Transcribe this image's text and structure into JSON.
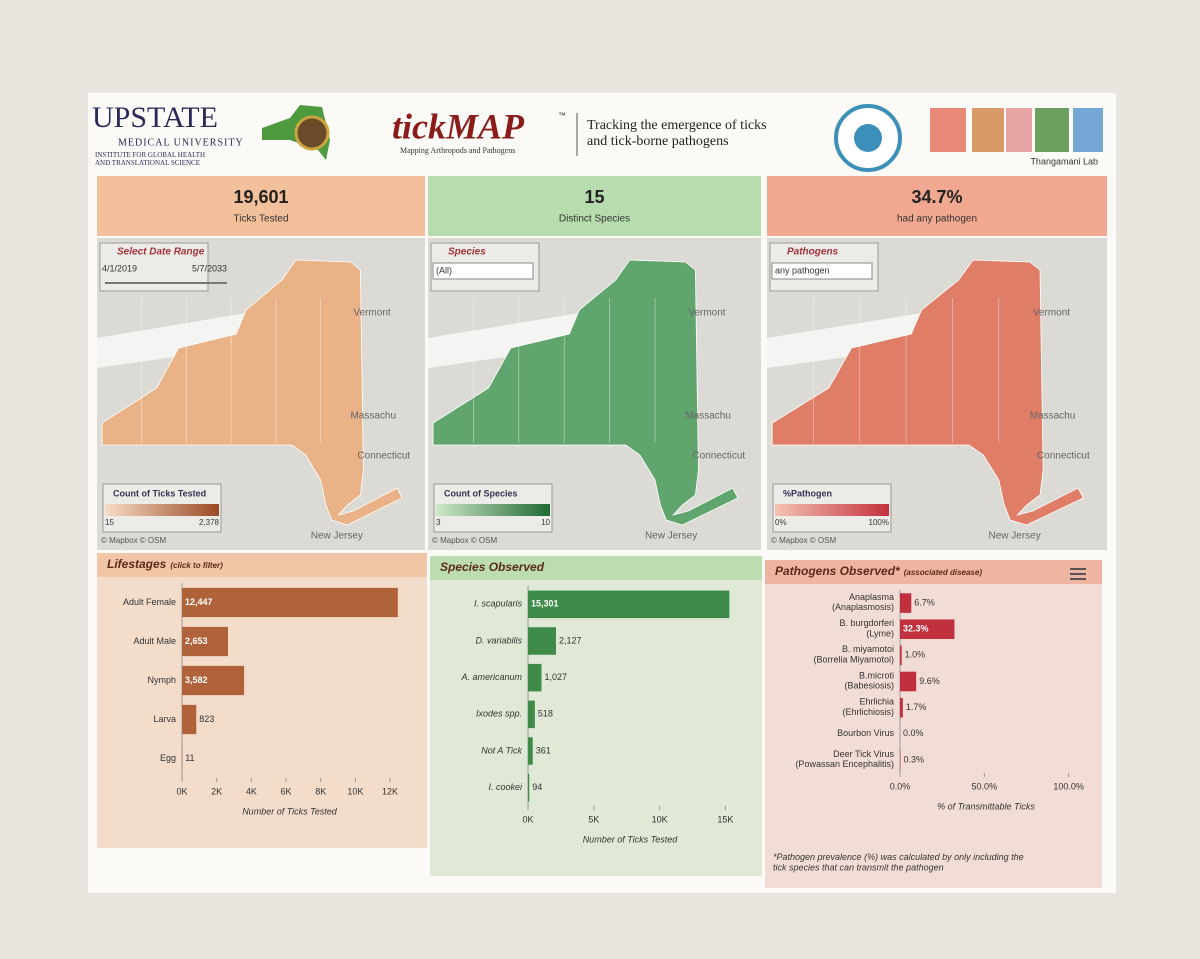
{
  "header": {
    "logo_title": "UPSTATE",
    "logo_subtitle": "MEDICAL UNIVERSITY",
    "logo_institute": "INSTITUTE FOR GLOBAL HEALTH\nAND TRANSLATIONAL SCIENCE",
    "app_name": "tickMAP",
    "app_tm": "™",
    "app_tagline": "Mapping Arthropods and Pathogens",
    "description": "Tracking the emergence of ticks\nand tick-borne pathogens",
    "lab": "Thangamani Lab"
  },
  "kpis": [
    {
      "value": "19,601",
      "label": "Ticks Tested"
    },
    {
      "value": "15",
      "label": "Distinct Species"
    },
    {
      "value": "34.7%",
      "label": "had any pathogen"
    }
  ],
  "maps": [
    {
      "filter_title": "Select Date Range",
      "filter_values": [
        "4/1/2019",
        "5/7/2033"
      ],
      "legend_title": "Count of Ticks Tested",
      "legend_min": "15",
      "legend_max": "2,378",
      "attribution": "© Mapbox © OSM",
      "places": [
        "Vermont",
        "Massachu",
        "Connecticut",
        "New Jersey"
      ]
    },
    {
      "filter_title": "Species",
      "filter_values": [
        "(All)"
      ],
      "legend_title": "Count of Species",
      "legend_min": "3",
      "legend_max": "10",
      "attribution": "© Mapbox © OSM",
      "places": [
        "Vermont",
        "Massachu",
        "Connecticut",
        "New Jersey"
      ]
    },
    {
      "filter_title": "Pathogens",
      "filter_values": [
        "any pathogen"
      ],
      "legend_title": "%Pathogen",
      "legend_min": "0%",
      "legend_max": "100%",
      "attribution": "© Mapbox © OSM",
      "places": [
        "Vermont",
        "Massachu",
        "Connecticut",
        "New Jersey"
      ]
    }
  ],
  "chart_data": [
    {
      "type": "bar",
      "title": "Lifestages",
      "subtitle": "(click to filter)",
      "xlabel": "Number of Ticks Tested",
      "color": "#b0623a",
      "categories": [
        "Adult Female",
        "Adult Male",
        "Nymph",
        "Larva",
        "Egg"
      ],
      "values": [
        12447,
        2653,
        3582,
        823,
        11
      ],
      "value_labels": [
        "12,447",
        "2,653",
        "3,582",
        "823",
        "11"
      ],
      "xlim": [
        0,
        12400
      ],
      "xticks": [
        {
          "value": 0,
          "label": "0K"
        },
        {
          "value": 2000,
          "label": "2K"
        },
        {
          "value": 4000,
          "label": "4K"
        },
        {
          "value": 6000,
          "label": "6K"
        },
        {
          "value": 8000,
          "label": "8K"
        },
        {
          "value": 10000,
          "label": "10K"
        },
        {
          "value": 12000,
          "label": "12K"
        }
      ]
    },
    {
      "type": "bar",
      "title": "Species Observed",
      "xlabel": "Number of Ticks Tested",
      "color": "#3e8a49",
      "categories": [
        "I. scapularis",
        "D. variabilis",
        "A. americanum",
        "Ixodes spp.",
        "Not A Tick",
        "I. cookei"
      ],
      "values": [
        15301,
        2127,
        1027,
        518,
        361,
        94
      ],
      "value_labels": [
        "15,301",
        "2,127",
        "1,027",
        "518",
        "361",
        "94"
      ],
      "xlim": [
        0,
        15500
      ],
      "xticks": [
        {
          "value": 0,
          "label": "0K"
        },
        {
          "value": 5000,
          "label": "5K"
        },
        {
          "value": 10000,
          "label": "10K"
        },
        {
          "value": 15000,
          "label": "15K"
        }
      ]
    },
    {
      "type": "bar",
      "title": "Pathogens Observed*",
      "subtitle": "(associated disease)",
      "xlabel": "% of Transmittable Ticks",
      "color": "#c0303f",
      "categories": [
        "Anaplasma\n(Anaplasmosis)",
        "B. burgdorferi\n(Lyme)",
        "B. miyamotoi\n(Borrelia Miyamotoi)",
        "B.microti\n(Babesiosis)",
        "Ehrlichia\n(Ehrlichiosis)",
        "Bourbon Virus",
        "Deer Tick Virus\n(Powassan Encephalitis)"
      ],
      "values": [
        6.7,
        32.3,
        1.0,
        9.6,
        1.7,
        0.0,
        0.3
      ],
      "value_labels": [
        "6.7%",
        "32.3%",
        "1.0%",
        "9.6%",
        "1.7%",
        "0.0%",
        "0.3%"
      ],
      "xlim": [
        0,
        102
      ],
      "xticks": [
        {
          "value": 0,
          "label": "0.0%"
        },
        {
          "value": 50,
          "label": "50.0%"
        },
        {
          "value": 100,
          "label": "100.0%"
        }
      ],
      "footnote": "*Pathogen prevalence (%) was calculated by only including the\ntick species that can transmit the pathogen"
    }
  ]
}
